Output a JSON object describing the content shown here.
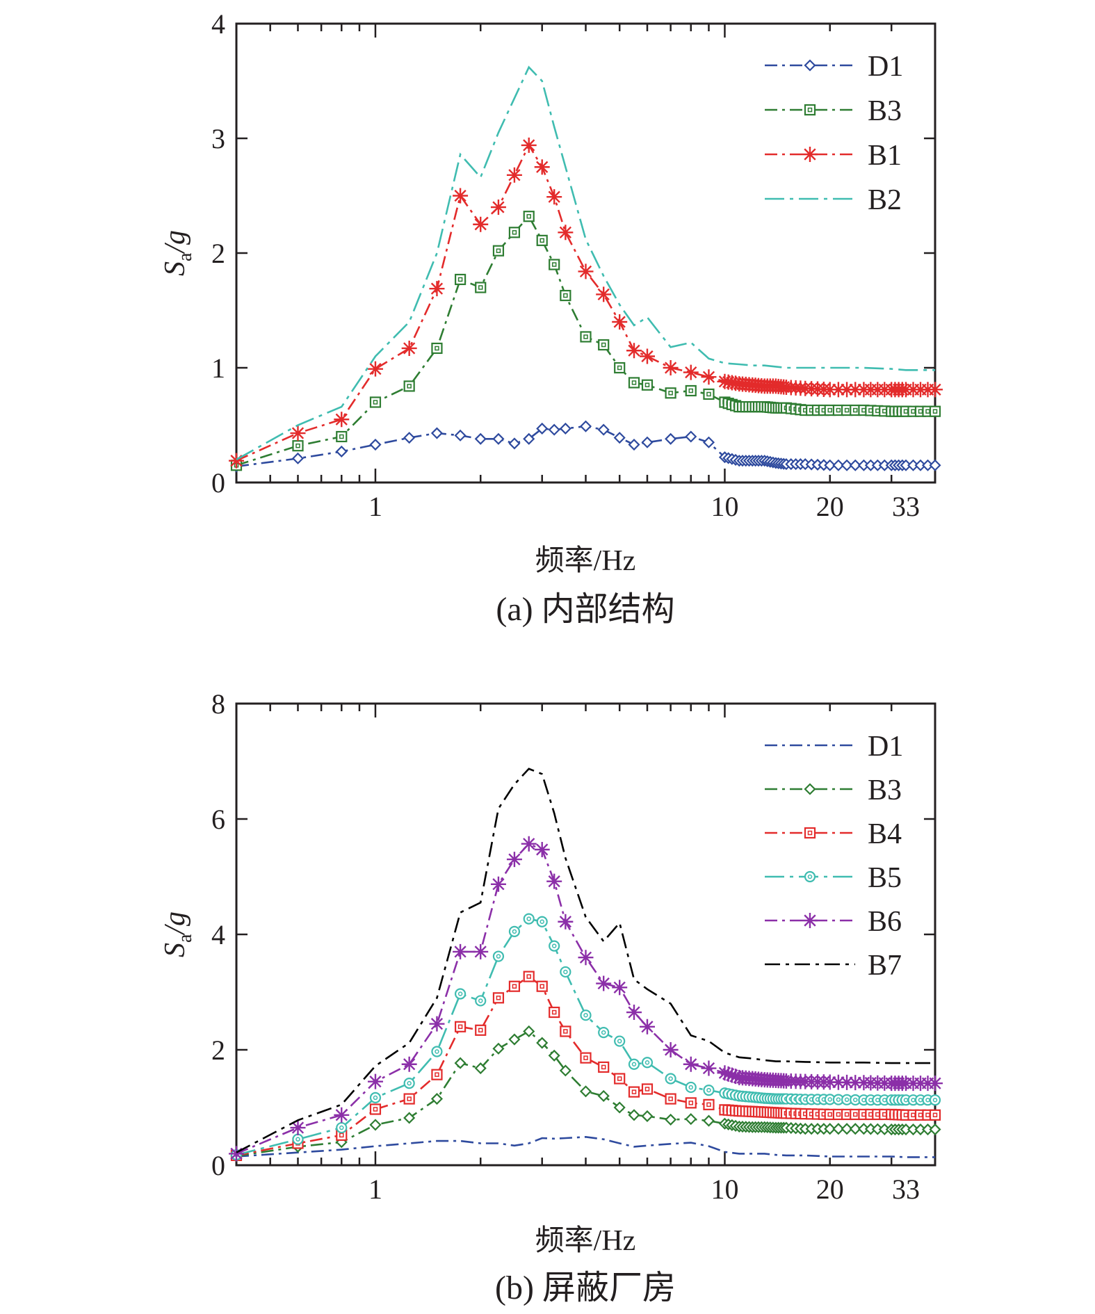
{
  "chart_data": [
    {
      "type": "line",
      "panel": "(a)",
      "caption": "(a) 内部结构",
      "xlabel": "频率/Hz",
      "ylabel": {
        "main": "S",
        "sub": "a",
        "rest": "/g"
      },
      "xscale": "log",
      "xlim": [
        0.4,
        40
      ],
      "ylim": [
        0,
        4
      ],
      "xticks": [
        1,
        10,
        20,
        33
      ],
      "yticks": [
        0,
        1,
        2,
        3,
        4
      ],
      "legend_position": "top-right",
      "series": [
        {
          "name": "D1",
          "color": "#2e4a9e",
          "marker": "diamond",
          "markers_every": 1,
          "x": [
            0.4,
            0.6,
            0.8,
            1.0,
            1.25,
            1.5,
            1.75,
            2.0,
            2.25,
            2.5,
            2.75,
            3.0,
            3.25,
            3.5,
            4.0,
            4.5,
            5.0,
            5.5,
            6.0,
            7.0,
            8.0,
            9.0,
            10.0,
            11,
            12,
            13,
            14,
            15,
            17,
            20,
            25,
            30,
            33,
            40
          ],
          "y": [
            0.14,
            0.21,
            0.27,
            0.33,
            0.39,
            0.43,
            0.41,
            0.38,
            0.38,
            0.34,
            0.38,
            0.47,
            0.46,
            0.47,
            0.49,
            0.46,
            0.39,
            0.33,
            0.35,
            0.38,
            0.4,
            0.35,
            0.22,
            0.19,
            0.19,
            0.19,
            0.17,
            0.16,
            0.16,
            0.15,
            0.15,
            0.15,
            0.15,
            0.15
          ]
        },
        {
          "name": "B3",
          "color": "#2e7d32",
          "marker": "square",
          "markers_every": 1,
          "x": [
            0.4,
            0.6,
            0.8,
            1.0,
            1.25,
            1.5,
            1.75,
            2.0,
            2.25,
            2.5,
            2.75,
            3.0,
            3.25,
            3.5,
            4.0,
            4.5,
            5.0,
            5.5,
            6.0,
            7.0,
            8.0,
            9.0,
            10.0,
            11,
            12,
            13,
            14,
            15,
            17,
            20,
            25,
            30,
            33,
            40
          ],
          "y": [
            0.15,
            0.32,
            0.4,
            0.7,
            0.84,
            1.17,
            1.77,
            1.7,
            2.02,
            2.18,
            2.32,
            2.11,
            1.9,
            1.63,
            1.27,
            1.2,
            1.0,
            0.87,
            0.85,
            0.78,
            0.8,
            0.77,
            0.7,
            0.66,
            0.66,
            0.66,
            0.65,
            0.65,
            0.63,
            0.63,
            0.63,
            0.62,
            0.62,
            0.62
          ]
        },
        {
          "name": "B1",
          "color": "#e32b2b",
          "marker": "star",
          "markers_every": 1,
          "x": [
            0.4,
            0.6,
            0.8,
            1.0,
            1.25,
            1.5,
            1.75,
            2.0,
            2.25,
            2.5,
            2.75,
            3.0,
            3.25,
            3.5,
            4.0,
            4.5,
            5.0,
            5.5,
            6.0,
            7.0,
            8.0,
            9.0,
            10.0,
            11,
            12,
            13,
            14,
            15,
            17,
            20,
            25,
            30,
            33,
            40
          ],
          "y": [
            0.19,
            0.43,
            0.55,
            0.99,
            1.17,
            1.69,
            2.5,
            2.25,
            2.4,
            2.68,
            2.94,
            2.75,
            2.49,
            2.18,
            1.84,
            1.64,
            1.4,
            1.15,
            1.1,
            1.0,
            0.96,
            0.92,
            0.88,
            0.86,
            0.85,
            0.84,
            0.84,
            0.83,
            0.82,
            0.81,
            0.81,
            0.81,
            0.81,
            0.81
          ]
        },
        {
          "name": "B2",
          "color": "#3fbcb0",
          "marker": "none",
          "markers_every": 1,
          "x": [
            0.4,
            0.6,
            0.8,
            1.0,
            1.25,
            1.5,
            1.75,
            2.0,
            2.25,
            2.5,
            2.75,
            3.0,
            3.25,
            3.5,
            4.0,
            4.5,
            5.0,
            5.5,
            6.0,
            7.0,
            8.0,
            9.0,
            10.0,
            11,
            12,
            13,
            14,
            15,
            17,
            20,
            25,
            30,
            33,
            40
          ],
          "y": [
            0.2,
            0.5,
            0.66,
            1.1,
            1.4,
            2.0,
            2.86,
            2.66,
            3.05,
            3.35,
            3.62,
            3.5,
            3.1,
            2.75,
            2.12,
            1.8,
            1.55,
            1.37,
            1.44,
            1.18,
            1.22,
            1.08,
            1.04,
            1.03,
            1.02,
            1.02,
            1.01,
            1.0,
            1.0,
            1.0,
            1.0,
            0.99,
            0.98,
            0.98
          ]
        }
      ]
    },
    {
      "type": "line",
      "panel": "(b)",
      "caption": "(b) 屏蔽厂房",
      "xlabel": "频率/Hz",
      "ylabel": {
        "main": "S",
        "sub": "a",
        "rest": "/g"
      },
      "xscale": "log",
      "xlim": [
        0.4,
        40
      ],
      "ylim": [
        0,
        8
      ],
      "xticks": [
        1,
        10,
        20,
        33
      ],
      "yticks": [
        0,
        2,
        4,
        6,
        8
      ],
      "legend_position": "top-right",
      "series": [
        {
          "name": "D1",
          "color": "#2e4a9e",
          "marker": "none",
          "markers_every": 1,
          "x": [
            0.4,
            0.6,
            0.8,
            1.0,
            1.25,
            1.5,
            1.75,
            2.0,
            2.25,
            2.5,
            2.75,
            3.0,
            3.25,
            3.5,
            4.0,
            4.5,
            5.0,
            5.5,
            6.0,
            7.0,
            8.0,
            9.0,
            10.0,
            11,
            12,
            13,
            14,
            15,
            17,
            20,
            25,
            30,
            33,
            40
          ],
          "y": [
            0.15,
            0.22,
            0.27,
            0.33,
            0.38,
            0.42,
            0.42,
            0.38,
            0.38,
            0.34,
            0.38,
            0.47,
            0.46,
            0.47,
            0.49,
            0.45,
            0.38,
            0.32,
            0.34,
            0.37,
            0.39,
            0.33,
            0.23,
            0.2,
            0.2,
            0.2,
            0.18,
            0.17,
            0.17,
            0.15,
            0.15,
            0.15,
            0.14,
            0.14
          ]
        },
        {
          "name": "B3",
          "color": "#2e7d32",
          "marker": "diamond",
          "markers_every": 1,
          "x": [
            0.4,
            0.6,
            0.8,
            1.0,
            1.25,
            1.5,
            1.75,
            2.0,
            2.25,
            2.5,
            2.75,
            3.0,
            3.25,
            3.5,
            4.0,
            4.5,
            5.0,
            5.5,
            6.0,
            7.0,
            8.0,
            9.0,
            10.0,
            11,
            12,
            13,
            14,
            15,
            17,
            20,
            25,
            30,
            33,
            40
          ],
          "y": [
            0.16,
            0.32,
            0.4,
            0.7,
            0.82,
            1.15,
            1.77,
            1.68,
            2.02,
            2.18,
            2.32,
            2.12,
            1.9,
            1.64,
            1.28,
            1.2,
            1.0,
            0.87,
            0.85,
            0.79,
            0.8,
            0.77,
            0.72,
            0.67,
            0.66,
            0.66,
            0.65,
            0.65,
            0.63,
            0.63,
            0.63,
            0.62,
            0.62,
            0.62
          ]
        },
        {
          "name": "B4",
          "color": "#e32b2b",
          "marker": "square",
          "markers_every": 1,
          "x": [
            0.4,
            0.6,
            0.8,
            1.0,
            1.25,
            1.5,
            1.75,
            2.0,
            2.25,
            2.5,
            2.75,
            3.0,
            3.25,
            3.5,
            4.0,
            4.5,
            5.0,
            5.5,
            6.0,
            7.0,
            8.0,
            9.0,
            10.0,
            11,
            12,
            13,
            14,
            15,
            17,
            20,
            25,
            30,
            33,
            40
          ],
          "y": [
            0.17,
            0.38,
            0.52,
            0.97,
            1.15,
            1.57,
            2.4,
            2.34,
            2.9,
            3.1,
            3.27,
            3.1,
            2.65,
            2.32,
            1.86,
            1.7,
            1.5,
            1.27,
            1.32,
            1.15,
            1.08,
            1.05,
            0.96,
            0.94,
            0.93,
            0.92,
            0.91,
            0.9,
            0.89,
            0.88,
            0.88,
            0.88,
            0.87,
            0.87
          ]
        },
        {
          "name": "B5",
          "color": "#3fbcb0",
          "marker": "circle",
          "markers_every": 1,
          "x": [
            0.4,
            0.6,
            0.8,
            1.0,
            1.25,
            1.5,
            1.75,
            2.0,
            2.25,
            2.5,
            2.75,
            3.0,
            3.25,
            3.5,
            4.0,
            4.5,
            5.0,
            5.5,
            6.0,
            7.0,
            8.0,
            9.0,
            10.0,
            11,
            12,
            13,
            14,
            15,
            17,
            20,
            25,
            30,
            33,
            40
          ],
          "y": [
            0.18,
            0.45,
            0.65,
            1.17,
            1.42,
            1.97,
            2.97,
            2.85,
            3.62,
            4.05,
            4.27,
            4.22,
            3.8,
            3.35,
            2.6,
            2.3,
            2.15,
            1.75,
            1.78,
            1.5,
            1.35,
            1.3,
            1.25,
            1.2,
            1.18,
            1.16,
            1.15,
            1.15,
            1.14,
            1.14,
            1.13,
            1.13,
            1.13,
            1.13
          ]
        },
        {
          "name": "B6",
          "color": "#8b2fa8",
          "marker": "star",
          "markers_every": 1,
          "x": [
            0.4,
            0.6,
            0.8,
            1.0,
            1.25,
            1.5,
            1.75,
            2.0,
            2.25,
            2.5,
            2.75,
            3.0,
            3.25,
            3.5,
            4.0,
            4.5,
            5.0,
            5.5,
            6.0,
            7.0,
            8.0,
            9.0,
            10.0,
            11,
            12,
            13,
            14,
            15,
            17,
            20,
            25,
            30,
            33,
            40
          ],
          "y": [
            0.2,
            0.65,
            0.87,
            1.45,
            1.75,
            2.45,
            3.7,
            3.7,
            4.87,
            5.3,
            5.57,
            5.47,
            4.92,
            4.22,
            3.6,
            3.15,
            3.08,
            2.65,
            2.4,
            2.0,
            1.75,
            1.68,
            1.6,
            1.52,
            1.5,
            1.48,
            1.47,
            1.46,
            1.45,
            1.44,
            1.43,
            1.42,
            1.42,
            1.42
          ]
        },
        {
          "name": "B7",
          "color": "#000000",
          "marker": "none",
          "markers_every": 1,
          "x": [
            0.4,
            0.6,
            0.8,
            1.0,
            1.25,
            1.5,
            1.75,
            2.0,
            2.25,
            2.5,
            2.75,
            3.0,
            3.25,
            3.5,
            4.0,
            4.5,
            5.0,
            5.5,
            6.0,
            7.0,
            8.0,
            9.0,
            10.0,
            11,
            12,
            13,
            14,
            15,
            17,
            20,
            25,
            30,
            33,
            40
          ],
          "y": [
            0.22,
            0.78,
            1.05,
            1.72,
            2.12,
            2.9,
            4.38,
            4.55,
            6.18,
            6.6,
            6.87,
            6.78,
            6.1,
            5.32,
            4.3,
            3.88,
            4.2,
            3.22,
            3.05,
            2.8,
            2.25,
            2.15,
            1.95,
            1.87,
            1.85,
            1.82,
            1.8,
            1.8,
            1.79,
            1.78,
            1.78,
            1.77,
            1.77,
            1.77
          ]
        }
      ]
    }
  ]
}
